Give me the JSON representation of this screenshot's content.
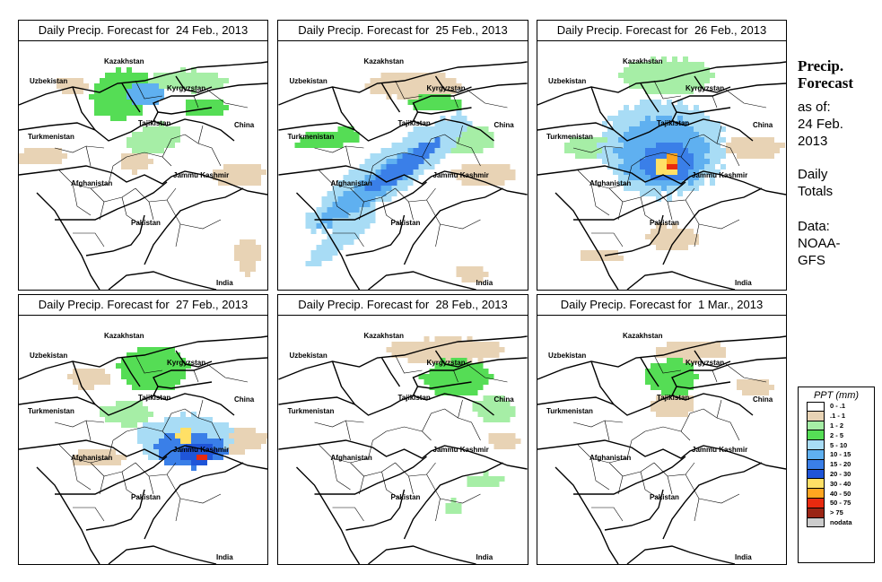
{
  "panels": [
    {
      "title": "Daily Precip. Forecast for  24 Feb., 2013"
    },
    {
      "title": "Daily Precip. Forecast for  25 Feb., 2013"
    },
    {
      "title": "Daily Precip. Forecast for  26 Feb., 2013"
    },
    {
      "title": "Daily Precip. Forecast for  27 Feb., 2013"
    },
    {
      "title": "Daily Precip. Forecast for  28 Feb., 2013"
    },
    {
      "title": "Daily Precip. Forecast for  1 Mar., 2013"
    }
  ],
  "map_labels": {
    "uzbekistan": "Uzbekistan",
    "kazakhstan": "Kazakhstan",
    "kyrgyzstan": "Kyrgyzstan",
    "tajikistan": "Tajikistan",
    "turkmenistan": "Turkmenistan",
    "china": "China",
    "afghanistan": "Afghanistan",
    "jammu_kashmir": "Jammu Kashmir",
    "pakistan": "Pakistan",
    "india": "India"
  },
  "sidebar": {
    "heading_line1": "Precip.",
    "heading_line2": "Forecast",
    "asof_line1": "as of:",
    "asof_line2": "24 Feb.",
    "asof_line3": "2013",
    "totals_line1": "Daily",
    "totals_line2": "Totals",
    "source_line1": "Data:",
    "source_line2": "NOAA-",
    "source_line3": "GFS"
  },
  "legend": {
    "title": "PPT (mm)",
    "items": [
      {
        "label": "0 - .1",
        "color": "#ffffff"
      },
      {
        "label": ".1 - 1",
        "color": "#e8d3b5"
      },
      {
        "label": "1 - 2",
        "color": "#a6eea6"
      },
      {
        "label": "2 - 5",
        "color": "#55dd55"
      },
      {
        "label": "5 - 10",
        "color": "#a8dcf5"
      },
      {
        "label": "10 - 15",
        "color": "#5fb0f0"
      },
      {
        "label": "15 - 20",
        "color": "#3a7fe8"
      },
      {
        "label": "20 - 30",
        "color": "#1f55d8"
      },
      {
        "label": "30 - 40",
        "color": "#ffe066"
      },
      {
        "label": "40 - 50",
        "color": "#ffa520"
      },
      {
        "label": "50 - 75",
        "color": "#e82a0f"
      },
      {
        "label": "> 75",
        "color": "#9a2515"
      },
      {
        "label": "nodata",
        "color": "#cccccc"
      }
    ]
  }
}
